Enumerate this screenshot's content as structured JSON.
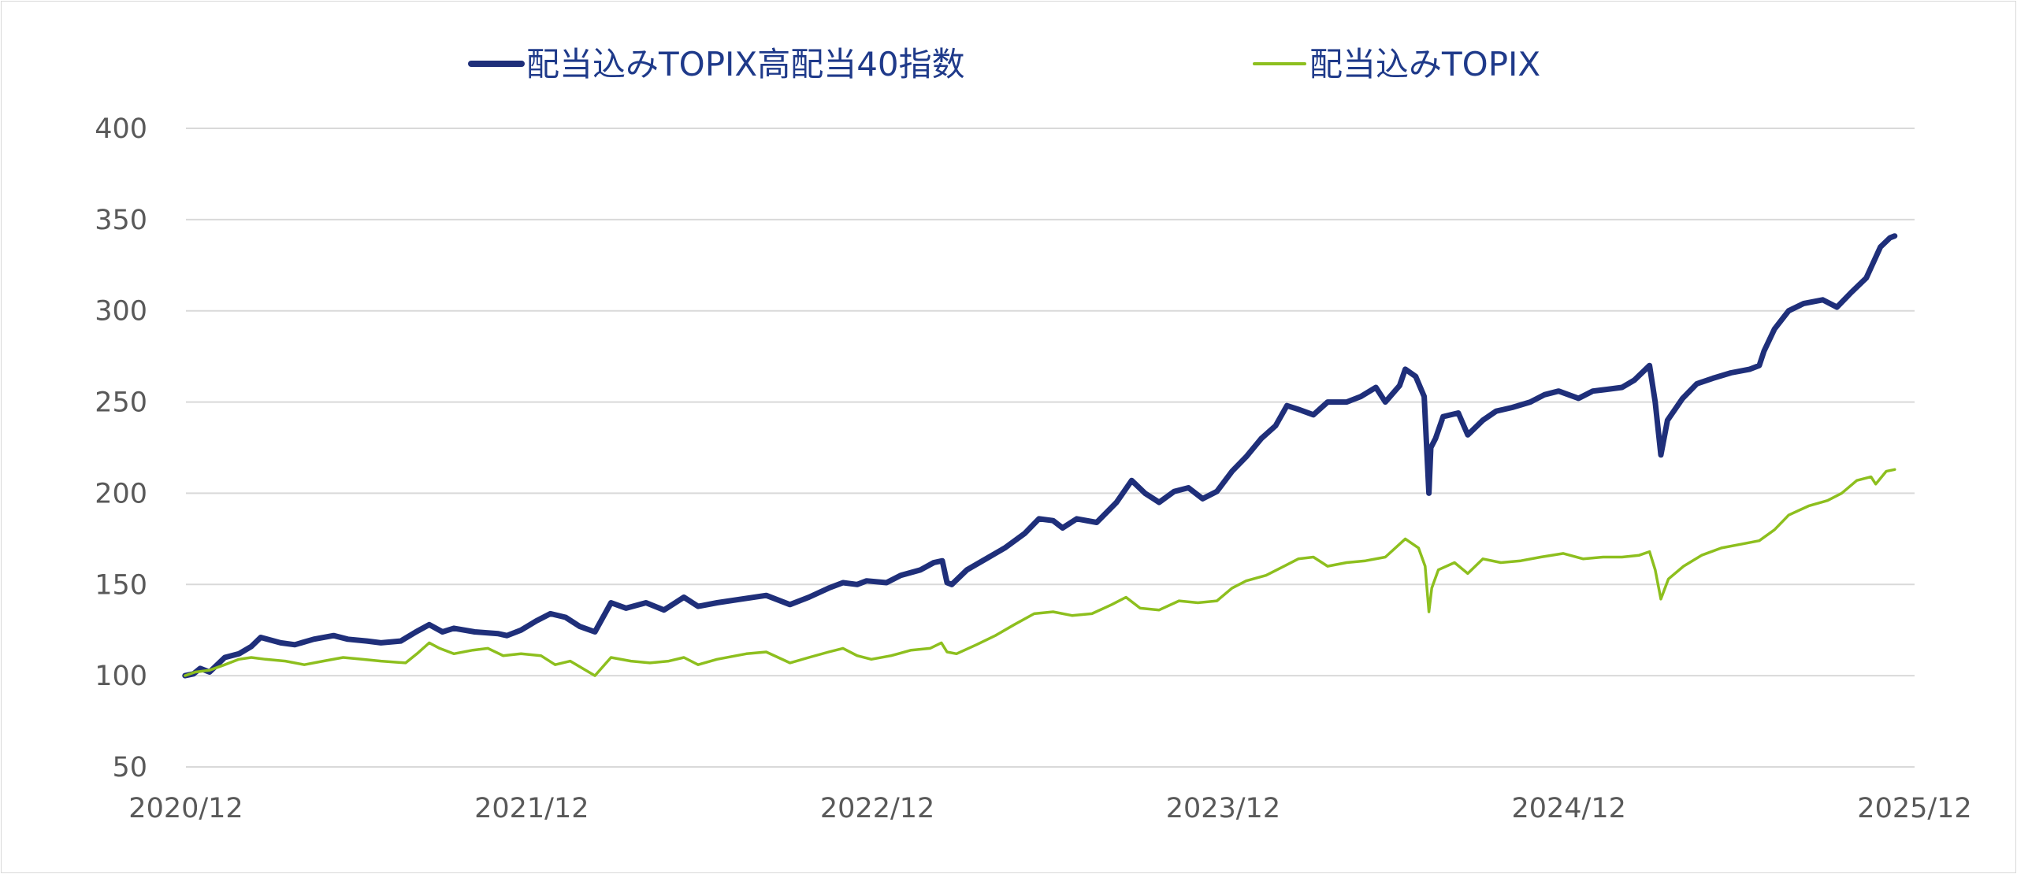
{
  "chart_data": {
    "type": "line",
    "title": "",
    "xlabel": "",
    "ylabel": "",
    "ylim": [
      50,
      400
    ],
    "yticks": [
      50,
      100,
      150,
      200,
      250,
      300,
      350,
      400
    ],
    "xticks": [
      "2020/12",
      "2021/12",
      "2022/12",
      "2023/12",
      "2024/12",
      "2025/12"
    ],
    "xlim": [
      "2020-12",
      "2025-12"
    ],
    "grid": "horizontal",
    "legend_position": "top",
    "series": [
      {
        "name": "配当込みTOPIX高配当40指数",
        "color": "#1f2f7a",
        "line": "thick",
        "points": [
          [
            "2020-12-30",
            100
          ],
          [
            "2021-01-08",
            101
          ],
          [
            "2021-01-15",
            104
          ],
          [
            "2021-01-25",
            102
          ],
          [
            "2021-02-10",
            110
          ],
          [
            "2021-02-25",
            112
          ],
          [
            "2021-03-10",
            116
          ],
          [
            "2021-03-20",
            121
          ],
          [
            "2021-04-10",
            118
          ],
          [
            "2021-04-25",
            117
          ],
          [
            "2021-05-15",
            120
          ],
          [
            "2021-06-05",
            122
          ],
          [
            "2021-06-20",
            120
          ],
          [
            "2021-07-10",
            119
          ],
          [
            "2021-07-25",
            118
          ],
          [
            "2021-08-15",
            119
          ],
          [
            "2021-08-31",
            124
          ],
          [
            "2021-09-14",
            128
          ],
          [
            "2021-09-28",
            124
          ],
          [
            "2021-10-10",
            126
          ],
          [
            "2021-11-01",
            124
          ],
          [
            "2021-11-26",
            123
          ],
          [
            "2021-12-05",
            122
          ],
          [
            "2021-12-20",
            125
          ],
          [
            "2022-01-05",
            130
          ],
          [
            "2022-01-20",
            134
          ],
          [
            "2022-02-05",
            132
          ],
          [
            "2022-02-20",
            127
          ],
          [
            "2022-03-08",
            124
          ],
          [
            "2022-03-25",
            140
          ],
          [
            "2022-04-10",
            137
          ],
          [
            "2022-05-01",
            140
          ],
          [
            "2022-05-20",
            136
          ],
          [
            "2022-06-10",
            143
          ],
          [
            "2022-06-25",
            138
          ],
          [
            "2022-07-15",
            140
          ],
          [
            "2022-08-10",
            142
          ],
          [
            "2022-09-05",
            144
          ],
          [
            "2022-09-30",
            139
          ],
          [
            "2022-10-20",
            143
          ],
          [
            "2022-11-10",
            148
          ],
          [
            "2022-11-25",
            151
          ],
          [
            "2022-12-10",
            150
          ],
          [
            "2022-12-20",
            152
          ],
          [
            "2023-01-10",
            151
          ],
          [
            "2023-01-25",
            155
          ],
          [
            "2023-02-15",
            158
          ],
          [
            "2023-03-01",
            162
          ],
          [
            "2023-03-10",
            163
          ],
          [
            "2023-03-15",
            151
          ],
          [
            "2023-03-20",
            150
          ],
          [
            "2023-04-05",
            158
          ],
          [
            "2023-04-25",
            164
          ],
          [
            "2023-05-15",
            170
          ],
          [
            "2023-06-05",
            178
          ],
          [
            "2023-06-20",
            186
          ],
          [
            "2023-07-05",
            185
          ],
          [
            "2023-07-15",
            181
          ],
          [
            "2023-07-30",
            186
          ],
          [
            "2023-08-20",
            184
          ],
          [
            "2023-09-10",
            195
          ],
          [
            "2023-09-26",
            207
          ],
          [
            "2023-10-10",
            200
          ],
          [
            "2023-10-25",
            195
          ],
          [
            "2023-11-10",
            201
          ],
          [
            "2023-11-25",
            203
          ],
          [
            "2023-12-10",
            197
          ],
          [
            "2023-12-25",
            201
          ],
          [
            "2024-01-10",
            212
          ],
          [
            "2024-01-25",
            220
          ],
          [
            "2024-02-10",
            230
          ],
          [
            "2024-02-25",
            237
          ],
          [
            "2024-03-08",
            248
          ],
          [
            "2024-03-20",
            246
          ],
          [
            "2024-04-05",
            243
          ],
          [
            "2024-04-20",
            250
          ],
          [
            "2024-05-10",
            250
          ],
          [
            "2024-05-25",
            253
          ],
          [
            "2024-06-10",
            258
          ],
          [
            "2024-06-20",
            250
          ],
          [
            "2024-07-05",
            259
          ],
          [
            "2024-07-11",
            268
          ],
          [
            "2024-07-22",
            264
          ],
          [
            "2024-07-31",
            253
          ],
          [
            "2024-08-05",
            200
          ],
          [
            "2024-08-07",
            225
          ],
          [
            "2024-08-12",
            230
          ],
          [
            "2024-08-20",
            242
          ],
          [
            "2024-09-05",
            244
          ],
          [
            "2024-09-15",
            232
          ],
          [
            "2024-10-01",
            240
          ],
          [
            "2024-10-15",
            245
          ],
          [
            "2024-11-01",
            247
          ],
          [
            "2024-11-20",
            250
          ],
          [
            "2024-12-05",
            254
          ],
          [
            "2024-12-20",
            256
          ],
          [
            "2025-01-10",
            252
          ],
          [
            "2025-01-25",
            256
          ],
          [
            "2025-02-10",
            257
          ],
          [
            "2025-02-25",
            258
          ],
          [
            "2025-03-10",
            262
          ],
          [
            "2025-03-26",
            270
          ],
          [
            "2025-04-01",
            250
          ],
          [
            "2025-04-07",
            221
          ],
          [
            "2025-04-14",
            240
          ],
          [
            "2025-04-30",
            252
          ],
          [
            "2025-05-15",
            260
          ],
          [
            "2025-06-01",
            263
          ],
          [
            "2025-06-20",
            266
          ],
          [
            "2025-07-10",
            268
          ],
          [
            "2025-07-20",
            270
          ],
          [
            "2025-07-25",
            278
          ],
          [
            "2025-08-05",
            290
          ],
          [
            "2025-08-20",
            300
          ],
          [
            "2025-09-05",
            304
          ],
          [
            "2025-09-25",
            306
          ],
          [
            "2025-10-10",
            302
          ],
          [
            "2025-10-25",
            310
          ],
          [
            "2025-11-10",
            318
          ],
          [
            "2025-11-25",
            335
          ],
          [
            "2025-12-05",
            340
          ],
          [
            "2025-12-10",
            341
          ]
        ]
      },
      {
        "name": "配当込みTOPIX",
        "color": "#8dbf1e",
        "line": "thin",
        "points": [
          [
            "2020-12-30",
            100
          ],
          [
            "2021-01-10",
            102
          ],
          [
            "2021-01-25",
            103
          ],
          [
            "2021-02-10",
            106
          ],
          [
            "2021-02-25",
            109
          ],
          [
            "2021-03-10",
            110
          ],
          [
            "2021-03-25",
            109
          ],
          [
            "2021-04-15",
            108
          ],
          [
            "2021-05-05",
            106
          ],
          [
            "2021-05-25",
            108
          ],
          [
            "2021-06-15",
            110
          ],
          [
            "2021-07-05",
            109
          ],
          [
            "2021-07-25",
            108
          ],
          [
            "2021-08-20",
            107
          ],
          [
            "2021-09-01",
            112
          ],
          [
            "2021-09-14",
            118
          ],
          [
            "2021-09-25",
            115
          ],
          [
            "2021-10-10",
            112
          ],
          [
            "2021-10-30",
            114
          ],
          [
            "2021-11-15",
            115
          ],
          [
            "2021-12-01",
            111
          ],
          [
            "2021-12-20",
            112
          ],
          [
            "2022-01-10",
            111
          ],
          [
            "2022-01-25",
            106
          ],
          [
            "2022-02-10",
            108
          ],
          [
            "2022-03-08",
            100
          ],
          [
            "2022-03-25",
            110
          ],
          [
            "2022-04-15",
            108
          ],
          [
            "2022-05-05",
            107
          ],
          [
            "2022-05-25",
            108
          ],
          [
            "2022-06-10",
            110
          ],
          [
            "2022-06-25",
            106
          ],
          [
            "2022-07-15",
            109
          ],
          [
            "2022-08-15",
            112
          ],
          [
            "2022-09-05",
            113
          ],
          [
            "2022-09-30",
            107
          ],
          [
            "2022-10-20",
            110
          ],
          [
            "2022-11-10",
            113
          ],
          [
            "2022-11-25",
            115
          ],
          [
            "2022-12-10",
            111
          ],
          [
            "2022-12-25",
            109
          ],
          [
            "2023-01-15",
            111
          ],
          [
            "2023-02-05",
            114
          ],
          [
            "2023-02-25",
            115
          ],
          [
            "2023-03-09",
            118
          ],
          [
            "2023-03-15",
            113
          ],
          [
            "2023-03-25",
            112
          ],
          [
            "2023-04-15",
            117
          ],
          [
            "2023-05-05",
            122
          ],
          [
            "2023-05-25",
            128
          ],
          [
            "2023-06-15",
            134
          ],
          [
            "2023-07-05",
            135
          ],
          [
            "2023-07-25",
            133
          ],
          [
            "2023-08-15",
            134
          ],
          [
            "2023-09-05",
            139
          ],
          [
            "2023-09-20",
            143
          ],
          [
            "2023-10-05",
            137
          ],
          [
            "2023-10-25",
            136
          ],
          [
            "2023-11-15",
            141
          ],
          [
            "2023-12-05",
            140
          ],
          [
            "2023-12-25",
            141
          ],
          [
            "2024-01-10",
            148
          ],
          [
            "2024-01-25",
            152
          ],
          [
            "2024-02-15",
            155
          ],
          [
            "2024-03-05",
            160
          ],
          [
            "2024-03-20",
            164
          ],
          [
            "2024-04-05",
            165
          ],
          [
            "2024-04-20",
            160
          ],
          [
            "2024-05-10",
            162
          ],
          [
            "2024-05-30",
            163
          ],
          [
            "2024-06-20",
            165
          ],
          [
            "2024-07-11",
            175
          ],
          [
            "2024-07-25",
            170
          ],
          [
            "2024-08-01",
            160
          ],
          [
            "2024-08-05",
            135
          ],
          [
            "2024-08-08",
            148
          ],
          [
            "2024-08-15",
            158
          ],
          [
            "2024-09-01",
            162
          ],
          [
            "2024-09-15",
            156
          ],
          [
            "2024-10-01",
            164
          ],
          [
            "2024-10-20",
            162
          ],
          [
            "2024-11-10",
            163
          ],
          [
            "2024-12-01",
            165
          ],
          [
            "2024-12-25",
            167
          ],
          [
            "2025-01-15",
            164
          ],
          [
            "2025-02-05",
            165
          ],
          [
            "2025-02-25",
            165
          ],
          [
            "2025-03-15",
            166
          ],
          [
            "2025-03-26",
            168
          ],
          [
            "2025-04-01",
            158
          ],
          [
            "2025-04-07",
            142
          ],
          [
            "2025-04-15",
            153
          ],
          [
            "2025-05-01",
            160
          ],
          [
            "2025-05-20",
            166
          ],
          [
            "2025-06-10",
            170
          ],
          [
            "2025-06-30",
            172
          ],
          [
            "2025-07-20",
            174
          ],
          [
            "2025-08-05",
            180
          ],
          [
            "2025-08-20",
            188
          ],
          [
            "2025-09-10",
            193
          ],
          [
            "2025-09-30",
            196
          ],
          [
            "2025-10-15",
            200
          ],
          [
            "2025-10-31",
            207
          ],
          [
            "2025-11-15",
            209
          ],
          [
            "2025-11-20",
            205
          ],
          [
            "2025-12-01",
            212
          ],
          [
            "2025-12-10",
            213
          ]
        ]
      }
    ]
  }
}
